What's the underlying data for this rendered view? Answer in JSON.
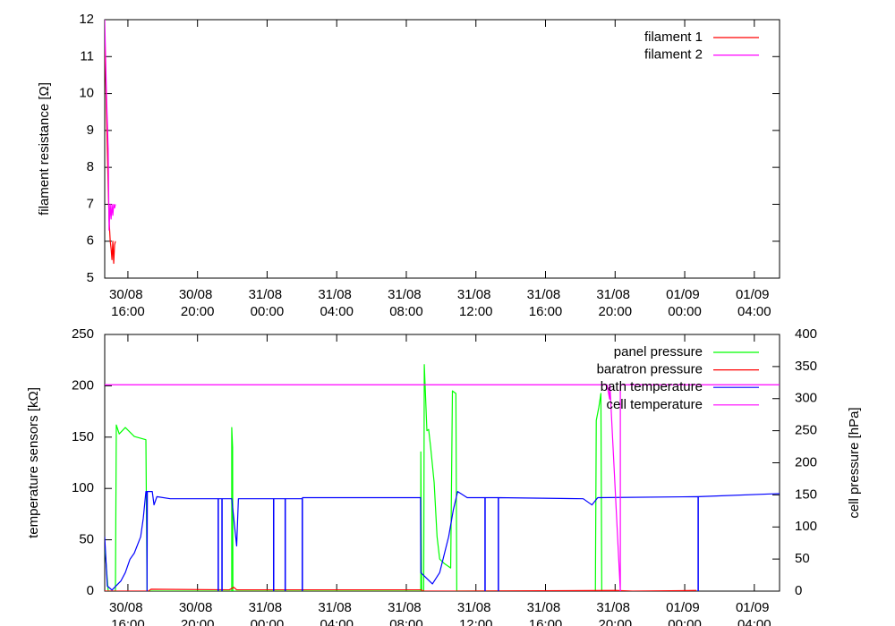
{
  "chart_data": [
    {
      "type": "line",
      "ylabel": "filament resistance [Ω]",
      "xlim": [
        "30/08 14:40",
        "01/09 05:27"
      ],
      "xticks": [
        "30/08 16:00",
        "30/08 20:00",
        "31/08 00:00",
        "31/08 04:00",
        "31/08 08:00",
        "31/08 12:00",
        "31/08 16:00",
        "31/08 20:00",
        "01/09 00:00",
        "01/09 04:00"
      ],
      "ylim": [
        5,
        12
      ],
      "yticks": [
        5,
        6,
        7,
        8,
        9,
        10,
        11,
        12
      ],
      "legend": "top right",
      "series": [
        {
          "name": "filament 1",
          "color": "#ff0000",
          "x": [
            "30/08 14:40",
            "30/08 14:46",
            "30/08 14:52",
            "30/08 14:55",
            "30/08 14:59",
            "30/08 15:02",
            "30/08 15:05",
            "30/08 15:08",
            "30/08 15:11",
            "30/08 15:14",
            "30/08 15:17"
          ],
          "values": [
            11.5,
            9.5,
            7.5,
            6.6,
            6.0,
            5.8,
            5.5,
            6.0,
            5.4,
            5.9,
            6.0
          ]
        },
        {
          "name": "filament 2",
          "color": "#ff00ff",
          "x": [
            "30/08 14:40",
            "30/08 14:46",
            "30/08 14:52",
            "30/08 14:55",
            "30/08 14:59",
            "30/08 15:02",
            "30/08 15:05",
            "30/08 15:08",
            "30/08 15:11",
            "30/08 15:14",
            "30/08 15:17"
          ],
          "values": [
            12.0,
            10.0,
            8.5,
            6.3,
            7.0,
            6.6,
            7.0,
            6.7,
            7.0,
            6.9,
            7.0
          ]
        }
      ]
    },
    {
      "type": "line",
      "ylabel": "temperature sensors [kΩ]",
      "y2label": "cell pressure [hPa]",
      "xlim": [
        "30/08 14:40",
        "01/09 05:27"
      ],
      "xticks": [
        "30/08 16:00",
        "30/08 20:00",
        "31/08 00:00",
        "31/08 04:00",
        "31/08 08:00",
        "31/08 12:00",
        "31/08 16:00",
        "31/08 20:00",
        "01/09 00:00",
        "01/09 04:00"
      ],
      "ylim": [
        0,
        250
      ],
      "yticks": [
        0,
        50,
        100,
        150,
        200,
        250
      ],
      "y2lim": [
        0,
        400
      ],
      "y2ticks": [
        0,
        50,
        100,
        150,
        200,
        250,
        300,
        350,
        400
      ],
      "legend": "top right",
      "series": [
        {
          "name": "panel pressure",
          "color": "#00ff00",
          "axis": "y2",
          "x": [
            "30/08 14:40",
            "30/08 14:52",
            "30/08 15:17",
            "30/08 15:20",
            "30/08 15:30",
            "30/08 15:51",
            "30/08 16:22",
            "30/08 17:02",
            "30/08 17:06",
            "30/08 21:58",
            "30/08 21:58",
            "30/08 22:01",
            "30/08 22:02",
            "31/08 08:50",
            "31/08 08:50",
            "31/08 08:53",
            "31/08 09:00",
            "31/08 09:02",
            "31/08 09:11",
            "31/08 09:17",
            "31/08 09:24",
            "31/08 09:36",
            "31/08 09:46",
            "31/08 09:55",
            "31/08 10:11",
            "31/08 10:33",
            "31/08 10:39",
            "31/08 10:51",
            "31/08 10:54",
            "31/08 18:52",
            "31/08 18:55",
            "31/08 19:04",
            "31/08 19:11",
            "31/08 19:14"
          ],
          "values": [
            71,
            0,
            0,
            259,
            245,
            255,
            241,
            236,
            0,
            0,
            255,
            224,
            0,
            0,
            217,
            0,
            0,
            353,
            250,
            252,
            224,
            169,
            85,
            50,
            43,
            36,
            312,
            308,
            0,
            0,
            266,
            287,
            308,
            0
          ]
        },
        {
          "name": "baratron pressure",
          "color": "#ff0000",
          "axis": "y2",
          "x": [
            "30/08 14:40",
            "30/08 17:10",
            "30/08 17:20",
            "30/08 21:50",
            "30/08 22:05",
            "30/08 22:15",
            "31/08 08:50",
            "31/08 09:00",
            "31/08 10:50",
            "31/08 20:00",
            "31/08 21:00",
            "01/09 00:40"
          ],
          "values": [
            0,
            0,
            3,
            2,
            6,
            2,
            2,
            0,
            0,
            1,
            0,
            1
          ]
        },
        {
          "name": "bath temperature",
          "color": "#0000ff",
          "x": [
            "30/08 14:40",
            "30/08 14:49",
            "30/08 15:05",
            "30/08 15:36",
            "30/08 15:51",
            "30/08 16:07",
            "30/08 16:22",
            "30/08 16:44",
            "30/08 16:53",
            "30/08 17:02",
            "30/08 17:05",
            "30/08 17:06",
            "30/08 17:07",
            "30/08 17:24",
            "30/08 17:30",
            "30/08 17:40",
            "30/08 18:26",
            "30/08 21:11",
            "30/08 21:11",
            "30/08 21:12",
            "30/08 21:12",
            "30/08 21:24",
            "30/08 21:24",
            "30/08 21:25",
            "30/08 21:25",
            "30/08 21:58",
            "30/08 22:09",
            "30/08 22:15",
            "30/08 22:21",
            "31/08 00:22",
            "31/08 00:22",
            "31/08 00:23",
            "31/08 00:23",
            "31/08 01:02",
            "31/08 01:02",
            "31/08 01:03",
            "31/08 01:03",
            "31/08 02:01",
            "31/08 02:01",
            "31/08 02:02",
            "31/08 02:02",
            "31/08 08:49",
            "31/08 08:50",
            "31/08 09:30",
            "31/08 09:55",
            "31/08 10:26",
            "31/08 10:42",
            "31/08 10:57",
            "31/08 11:30",
            "31/08 12:31",
            "31/08 12:31",
            "31/08 12:32",
            "31/08 12:32",
            "31/08 13:17",
            "31/08 13:17",
            "31/08 13:18",
            "31/08 13:18",
            "31/08 18:10",
            "31/08 18:40",
            "31/08 19:00",
            "01/09 00:46",
            "01/09 00:46",
            "01/09 00:47",
            "01/09 00:47",
            "01/09 05:27"
          ],
          "values": [
            53,
            5,
            1,
            10,
            18,
            31,
            37,
            53,
            71,
            97,
            97,
            0,
            97,
            97,
            84,
            92,
            90,
            90,
            0,
            0,
            90,
            90,
            0,
            0,
            90,
            90,
            60,
            44,
            90,
            90,
            0,
            0,
            90,
            90,
            0,
            0,
            90,
            90,
            0,
            0,
            91,
            91,
            18,
            7,
            18,
            53,
            79,
            97,
            91,
            91,
            0,
            0,
            91,
            91,
            0,
            0,
            91,
            90,
            84,
            91,
            92,
            0,
            0,
            92,
            95
          ]
        },
        {
          "name": "cell temperature",
          "color": "#ff00ff",
          "x": [
            "30/08 14:40",
            "31/08 19:32",
            "31/08 19:41",
            "31/08 19:41",
            "31/08 19:42",
            "31/08 20:18",
            "31/08 20:18",
            "01/09 05:27"
          ],
          "values": [
            201,
            201,
            187,
            201,
            201,
            0,
            201,
            201
          ]
        }
      ]
    }
  ]
}
